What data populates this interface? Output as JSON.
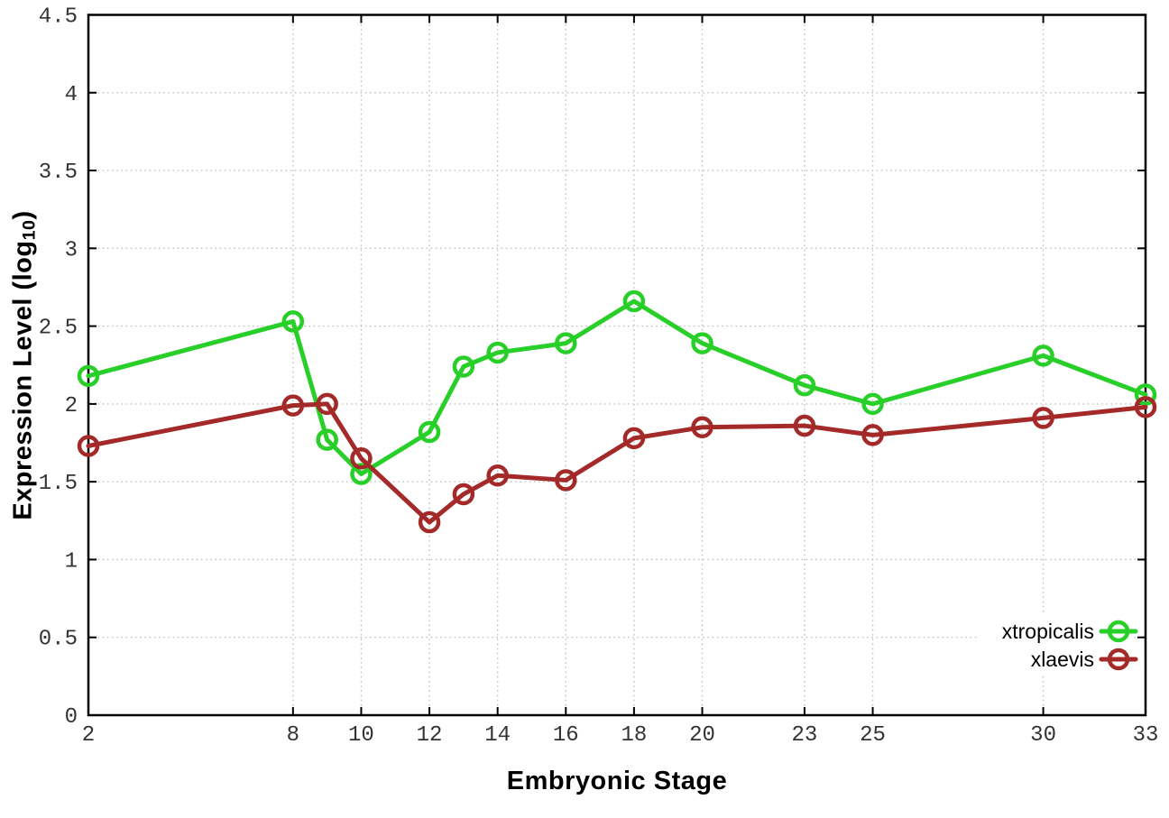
{
  "figure": {
    "background": "#ffffff"
  },
  "chart_data": {
    "type": "line",
    "xlabel": "Embryonic Stage",
    "ylabel": "Expression Level (log10)",
    "ylabel_parts": {
      "prefix": "Expression Level (log",
      "subscript": "10",
      "suffix": ")"
    },
    "x": [
      2,
      8,
      9,
      10,
      12,
      13,
      14,
      16,
      18,
      20,
      23,
      25,
      30,
      33
    ],
    "series": [
      {
        "name": "xtropicalis",
        "color": "#28cf28",
        "values": [
          2.18,
          2.53,
          1.77,
          1.55,
          1.82,
          2.24,
          2.33,
          2.39,
          2.66,
          2.39,
          2.12,
          2.0,
          2.31,
          2.06
        ]
      },
      {
        "name": "xlaevis",
        "color": "#a42a2a",
        "values": [
          1.73,
          1.99,
          2.0,
          1.65,
          1.24,
          1.42,
          1.54,
          1.51,
          1.78,
          1.85,
          1.86,
          1.8,
          1.91,
          1.98
        ]
      }
    ],
    "xlim": [
      2,
      33
    ],
    "ylim": [
      0,
      4.5
    ],
    "xticks": [
      2,
      8,
      10,
      12,
      14,
      16,
      18,
      20,
      23,
      25,
      30,
      33
    ],
    "xtick_labels": [
      "2",
      "8",
      "10",
      "12",
      "14",
      "16",
      "18",
      "20",
      "23",
      "25",
      "30",
      "33"
    ],
    "yticks": [
      0,
      0.5,
      1,
      1.5,
      2,
      2.5,
      3,
      3.5,
      4,
      4.5
    ],
    "ytick_labels": [
      "0",
      "0.5",
      "1",
      "1.5",
      "2",
      "2.5",
      "3",
      "3.5",
      "4",
      "4.5"
    ],
    "grid": true,
    "legend_position": "bottom-right",
    "marker": "open-circle",
    "line_style": "linespoints"
  },
  "colors": {
    "axis": "#000000",
    "grid": "#c0c0c0",
    "tick_label": "#333333",
    "background": "#ffffff"
  }
}
